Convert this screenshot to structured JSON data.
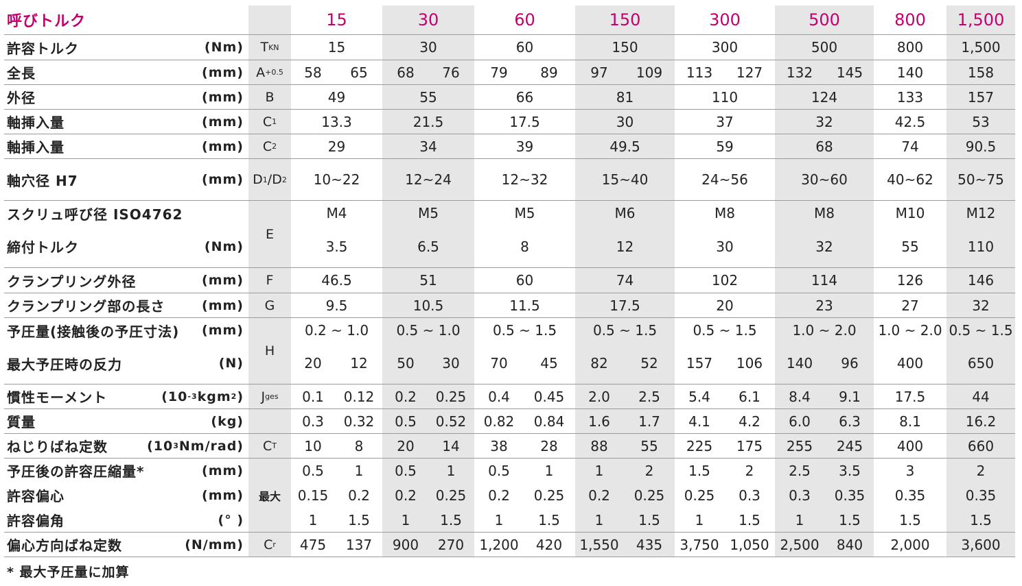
{
  "header": {
    "label": "呼びトルク",
    "sizes": [
      "15",
      "30",
      "60",
      "150",
      "300",
      "500",
      "800",
      "1,500"
    ]
  },
  "rows": [
    {
      "label": "許容トルク",
      "unit": "(Nm)",
      "symbol": "T_KN",
      "values": [
        "15",
        "30",
        "60",
        "150",
        "300",
        "500",
        "800",
        "1,500"
      ]
    },
    {
      "label": "全長",
      "unit": "(mm)",
      "symbol": "A+0.5",
      "values": [
        "58",
        "65",
        "68",
        "76",
        "79",
        "89",
        "97",
        "109",
        "113",
        "127",
        "132",
        "145",
        "140",
        "158"
      ]
    },
    {
      "label": "外径",
      "unit": "(mm)",
      "symbol": "B",
      "values": [
        "49",
        "55",
        "66",
        "81",
        "110",
        "124",
        "133",
        "157"
      ]
    },
    {
      "label": "軸挿入量",
      "unit": "(mm)",
      "symbol": "C1",
      "values": [
        "13.3",
        "21.5",
        "17.5",
        "30",
        "37",
        "32",
        "42.5",
        "53"
      ]
    },
    {
      "label": "軸挿入量",
      "unit": "(mm)",
      "symbol": "C2",
      "values": [
        "29",
        "34",
        "39",
        "49.5",
        "59",
        "68",
        "74",
        "90.5"
      ]
    },
    {
      "label": "軸穴径 H7",
      "unit": "(mm)",
      "symbol": "D1/D2",
      "values": [
        "10~22",
        "12~24",
        "12~32",
        "15~40",
        "24~56",
        "30~60",
        "40~62",
        "50~75"
      ]
    },
    {
      "label": "スクリュ呼び径 ISO4762",
      "unit": "",
      "symbol": "",
      "values": [
        "M4",
        "M5",
        "M5",
        "M6",
        "M8",
        "M8",
        "M10",
        "M12"
      ]
    },
    {
      "label": "締付トルク",
      "unit": "(Nm)",
      "symbol": "E",
      "values": [
        "3.5",
        "6.5",
        "8",
        "12",
        "30",
        "32",
        "55",
        "110"
      ]
    },
    {
      "label": "クランプリング外径",
      "unit": "(mm)",
      "symbol": "F",
      "values": [
        "46.5",
        "51",
        "60",
        "74",
        "102",
        "114",
        "126",
        "146"
      ]
    },
    {
      "label": "クランプリング部の長さ",
      "unit": "(mm)",
      "symbol": "G",
      "values": [
        "9.5",
        "10.5",
        "11.5",
        "17.5",
        "20",
        "23",
        "27",
        "32"
      ]
    },
    {
      "label": "予圧量(接触後の予圧寸法)",
      "unit": "(mm)",
      "symbol": "",
      "values": [
        "0.2 ~ 1.0",
        "0.5 ~ 1.0",
        "0.5 ~ 1.5",
        "0.5 ~ 1.5",
        "0.5 ~ 1.5",
        "1.0 ~ 2.0",
        "1.0 ~ 2.0",
        "0.5 ~ 1.5"
      ]
    },
    {
      "label": "最大予圧時の反力",
      "unit": "(N)",
      "symbol": "H",
      "values": [
        "20",
        "12",
        "50",
        "30",
        "70",
        "45",
        "82",
        "52",
        "157",
        "106",
        "140",
        "96",
        "400",
        "650"
      ]
    },
    {
      "label": "慣性モーメント",
      "unit": "(10-3 kgm2)",
      "symbol": "J_ges",
      "values": [
        "0.1",
        "0.12",
        "0.2",
        "0.25",
        "0.4",
        "0.45",
        "2.0",
        "2.5",
        "5.4",
        "6.1",
        "8.4",
        "9.1",
        "17.5",
        "44"
      ]
    },
    {
      "label": "質量",
      "unit": "(kg)",
      "symbol": "",
      "values": [
        "0.3",
        "0.32",
        "0.5",
        "0.52",
        "0.82",
        "0.84",
        "1.6",
        "1.7",
        "4.1",
        "4.2",
        "6.0",
        "6.3",
        "8.1",
        "16.2"
      ]
    },
    {
      "label": "ねじりばね定数",
      "unit": "(103 Nm/rad)",
      "symbol": "C_T",
      "values": [
        "10",
        "8",
        "20",
        "14",
        "38",
        "28",
        "88",
        "55",
        "225",
        "175",
        "255",
        "245",
        "400",
        "660"
      ]
    },
    {
      "label": "予圧後の許容圧縮量*",
      "unit": "(mm)",
      "symbol": "",
      "values": [
        "0.5",
        "1",
        "0.5",
        "1",
        "0.5",
        "1",
        "1",
        "2",
        "1.5",
        "2",
        "2.5",
        "3.5",
        "3",
        "2"
      ]
    },
    {
      "label": "許容偏心",
      "unit": "(mm)",
      "symbol": "最大",
      "values": [
        "0.15",
        "0.2",
        "0.2",
        "0.25",
        "0.2",
        "0.25",
        "0.2",
        "0.25",
        "0.25",
        "0.3",
        "0.3",
        "0.35",
        "0.35",
        "0.35"
      ]
    },
    {
      "label": "許容偏角",
      "unit": "(° )",
      "symbol": "",
      "values": [
        "1",
        "1.5",
        "1",
        "1.5",
        "1",
        "1.5",
        "1",
        "1.5",
        "1",
        "1.5",
        "1",
        "1.5",
        "1.5",
        "1.5"
      ]
    },
    {
      "label": "偏心方向ばね定数",
      "unit": "(N/mm)",
      "symbol": "C_r",
      "values": [
        "475",
        "137",
        "900",
        "270",
        "1,200",
        "420",
        "1,550",
        "435",
        "3,750",
        "1,050",
        "2,500",
        "840",
        "2,000",
        "3,600"
      ]
    }
  ],
  "symbols": {
    "t_main": "T",
    "t_sub": "KN",
    "a_main": "A",
    "a_sup": "+0.5",
    "c_main": "C",
    "c1_sub": "1",
    "c2_sub": "2",
    "d_main1": "D",
    "d_sub1": "1",
    "d_slash": "/",
    "d_main2": "D",
    "d_sub2": "2",
    "e": "E",
    "h": "H",
    "max": "最大",
    "j_main": "J",
    "j_sub": "ges",
    "ct_main": "C",
    "ct_sub": "T",
    "cr_main": "C",
    "cr_sub": "r"
  },
  "units_special": {
    "inertia_pre": "(10",
    "inertia_sup1": "-3",
    "inertia_mid": " kgm",
    "inertia_sup2": "2",
    "inertia_post": ")",
    "spring_pre": "(10",
    "spring_sup": "3",
    "spring_post": " Nm/rad)"
  },
  "footnote": "* 最大予圧量に加算",
  "colors": {
    "accent": "#c4006f",
    "band": "#e6e6e6"
  }
}
